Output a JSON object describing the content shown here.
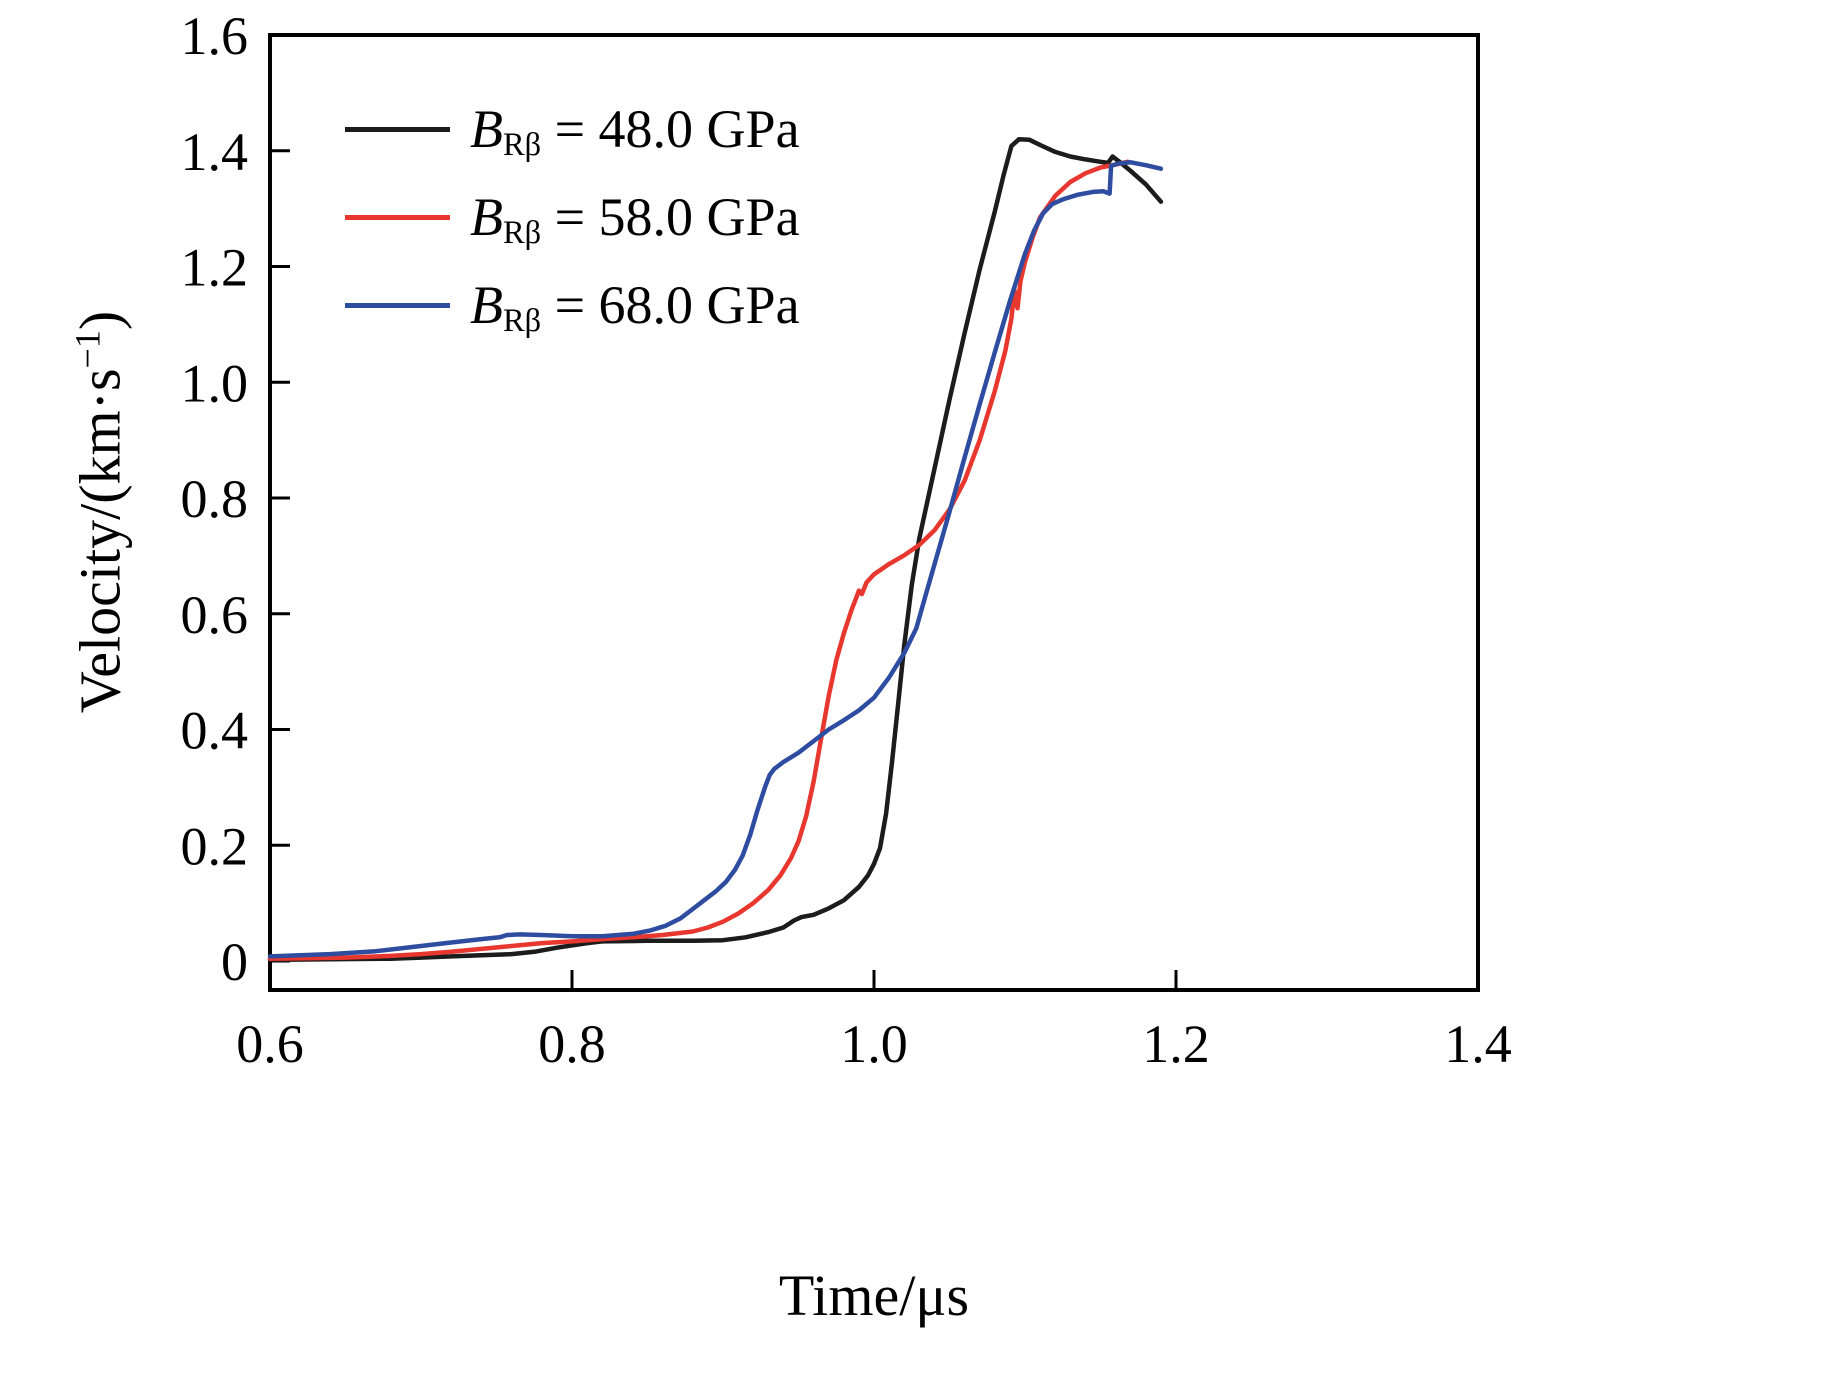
{
  "figure": {
    "background": "#ffffff",
    "frame_color": "#000000"
  },
  "chart_data": {
    "type": "line",
    "title": "",
    "xlabel": "Time/μs",
    "ylabel": "Velocity/(km·s⁻¹)",
    "ylabel_parts": {
      "pre": "Velocity/(km·s",
      "sup": "−1",
      "post": ")"
    },
    "xlim": [
      0.6,
      1.4
    ],
    "ylim": [
      0,
      1.6
    ],
    "xticks": [
      0.6,
      0.8,
      1.0,
      1.2,
      1.4
    ],
    "xtick_labels": [
      "0.6",
      "0.8",
      "1.0",
      "1.2",
      "1.4"
    ],
    "yticks": [
      0,
      0.2,
      0.4,
      0.6,
      0.8,
      1.0,
      1.2,
      1.4,
      1.6
    ],
    "ytick_labels": [
      "0",
      "0.2",
      "0.4",
      "0.6",
      "0.8",
      "1.0",
      "1.2",
      "1.4",
      "1.6"
    ],
    "grid": false,
    "legend_position": "upper-left",
    "series": [
      {
        "name": "B_Rβ = 48.0 GPa",
        "label": {
          "var": "B",
          "sub": "Rβ",
          "rest": " = 48.0 GPa"
        },
        "color": "#1c1c1c",
        "points": [
          [
            0.6,
            0.002
          ],
          [
            0.64,
            0.003
          ],
          [
            0.68,
            0.004
          ],
          [
            0.7,
            0.006
          ],
          [
            0.72,
            0.008
          ],
          [
            0.74,
            0.01
          ],
          [
            0.76,
            0.012
          ],
          [
            0.775,
            0.016
          ],
          [
            0.79,
            0.023
          ],
          [
            0.8,
            0.027
          ],
          [
            0.81,
            0.031
          ],
          [
            0.82,
            0.034
          ],
          [
            0.85,
            0.035
          ],
          [
            0.88,
            0.035
          ],
          [
            0.9,
            0.036
          ],
          [
            0.915,
            0.041
          ],
          [
            0.93,
            0.05
          ],
          [
            0.94,
            0.058
          ],
          [
            0.947,
            0.07
          ],
          [
            0.952,
            0.076
          ],
          [
            0.96,
            0.08
          ],
          [
            0.97,
            0.091
          ],
          [
            0.98,
            0.105
          ],
          [
            0.99,
            0.128
          ],
          [
            0.996,
            0.148
          ],
          [
            1.0,
            0.168
          ],
          [
            1.004,
            0.195
          ],
          [
            1.008,
            0.255
          ],
          [
            1.012,
            0.345
          ],
          [
            1.016,
            0.445
          ],
          [
            1.02,
            0.545
          ],
          [
            1.025,
            0.65
          ],
          [
            1.03,
            0.73
          ],
          [
            1.04,
            0.85
          ],
          [
            1.05,
            0.97
          ],
          [
            1.06,
            1.085
          ],
          [
            1.07,
            1.195
          ],
          [
            1.08,
            1.295
          ],
          [
            1.086,
            1.36
          ],
          [
            1.091,
            1.408
          ],
          [
            1.096,
            1.42
          ],
          [
            1.103,
            1.419
          ],
          [
            1.11,
            1.41
          ],
          [
            1.12,
            1.398
          ],
          [
            1.13,
            1.39
          ],
          [
            1.14,
            1.385
          ],
          [
            1.15,
            1.381
          ],
          [
            1.155,
            1.379
          ],
          [
            1.158,
            1.39
          ],
          [
            1.163,
            1.38
          ],
          [
            1.17,
            1.365
          ],
          [
            1.18,
            1.342
          ],
          [
            1.19,
            1.312
          ]
        ]
      },
      {
        "name": "B_Rβ = 58.0 GPa",
        "label": {
          "var": "B",
          "sub": "Rβ",
          "rest": " = 58.0 GPa"
        },
        "color": "#e8372e",
        "points": [
          [
            0.6,
            0.004
          ],
          [
            0.65,
            0.006
          ],
          [
            0.68,
            0.009
          ],
          [
            0.7,
            0.012
          ],
          [
            0.72,
            0.016
          ],
          [
            0.74,
            0.021
          ],
          [
            0.76,
            0.026
          ],
          [
            0.78,
            0.031
          ],
          [
            0.8,
            0.034
          ],
          [
            0.82,
            0.038
          ],
          [
            0.84,
            0.041
          ],
          [
            0.86,
            0.045
          ],
          [
            0.88,
            0.051
          ],
          [
            0.89,
            0.058
          ],
          [
            0.9,
            0.068
          ],
          [
            0.91,
            0.082
          ],
          [
            0.92,
            0.1
          ],
          [
            0.93,
            0.123
          ],
          [
            0.938,
            0.148
          ],
          [
            0.945,
            0.178
          ],
          [
            0.95,
            0.207
          ],
          [
            0.955,
            0.25
          ],
          [
            0.96,
            0.31
          ],
          [
            0.965,
            0.385
          ],
          [
            0.97,
            0.458
          ],
          [
            0.975,
            0.52
          ],
          [
            0.98,
            0.566
          ],
          [
            0.985,
            0.606
          ],
          [
            0.988,
            0.626
          ],
          [
            0.99,
            0.64
          ],
          [
            0.992,
            0.634
          ],
          [
            0.995,
            0.654
          ],
          [
            1.0,
            0.668
          ],
          [
            1.01,
            0.686
          ],
          [
            1.02,
            0.701
          ],
          [
            1.03,
            0.719
          ],
          [
            1.04,
            0.744
          ],
          [
            1.05,
            0.78
          ],
          [
            1.06,
            0.83
          ],
          [
            1.07,
            0.9
          ],
          [
            1.08,
            0.985
          ],
          [
            1.087,
            1.055
          ],
          [
            1.091,
            1.11
          ],
          [
            1.093,
            1.16
          ],
          [
            1.095,
            1.128
          ],
          [
            1.097,
            1.175
          ],
          [
            1.1,
            1.208
          ],
          [
            1.105,
            1.25
          ],
          [
            1.11,
            1.285
          ],
          [
            1.12,
            1.322
          ],
          [
            1.13,
            1.346
          ],
          [
            1.14,
            1.361
          ],
          [
            1.15,
            1.371
          ],
          [
            1.16,
            1.376
          ],
          [
            1.168,
            1.381
          ]
        ]
      },
      {
        "name": "B_Rβ = 68.0 GPa",
        "label": {
          "var": "B",
          "sub": "Rβ",
          "rest": " = 68.0 GPa"
        },
        "color": "#2f4da0",
        "points": [
          [
            0.6,
            0.008
          ],
          [
            0.64,
            0.012
          ],
          [
            0.67,
            0.017
          ],
          [
            0.7,
            0.026
          ],
          [
            0.72,
            0.032
          ],
          [
            0.74,
            0.038
          ],
          [
            0.752,
            0.041
          ],
          [
            0.757,
            0.045
          ],
          [
            0.765,
            0.046
          ],
          [
            0.78,
            0.045
          ],
          [
            0.8,
            0.043
          ],
          [
            0.82,
            0.043
          ],
          [
            0.84,
            0.047
          ],
          [
            0.852,
            0.053
          ],
          [
            0.862,
            0.061
          ],
          [
            0.872,
            0.074
          ],
          [
            0.88,
            0.09
          ],
          [
            0.888,
            0.106
          ],
          [
            0.895,
            0.12
          ],
          [
            0.902,
            0.137
          ],
          [
            0.908,
            0.158
          ],
          [
            0.913,
            0.182
          ],
          [
            0.918,
            0.218
          ],
          [
            0.923,
            0.262
          ],
          [
            0.928,
            0.302
          ],
          [
            0.931,
            0.322
          ],
          [
            0.934,
            0.332
          ],
          [
            0.94,
            0.344
          ],
          [
            0.95,
            0.36
          ],
          [
            0.96,
            0.38
          ],
          [
            0.97,
            0.4
          ],
          [
            0.98,
            0.416
          ],
          [
            0.99,
            0.433
          ],
          [
            1.0,
            0.455
          ],
          [
            1.01,
            0.49
          ],
          [
            1.02,
            0.532
          ],
          [
            1.028,
            0.575
          ],
          [
            1.034,
            0.63
          ],
          [
            1.04,
            0.685
          ],
          [
            1.05,
            0.776
          ],
          [
            1.06,
            0.87
          ],
          [
            1.07,
            0.962
          ],
          [
            1.08,
            1.052
          ],
          [
            1.09,
            1.14
          ],
          [
            1.1,
            1.222
          ],
          [
            1.106,
            1.262
          ],
          [
            1.112,
            1.292
          ],
          [
            1.118,
            1.308
          ],
          [
            1.125,
            1.316
          ],
          [
            1.135,
            1.324
          ],
          [
            1.145,
            1.329
          ],
          [
            1.152,
            1.33
          ],
          [
            1.156,
            1.326
          ],
          [
            1.157,
            1.374
          ],
          [
            1.162,
            1.378
          ],
          [
            1.17,
            1.38
          ],
          [
            1.18,
            1.375
          ],
          [
            1.19,
            1.369
          ]
        ]
      }
    ]
  }
}
